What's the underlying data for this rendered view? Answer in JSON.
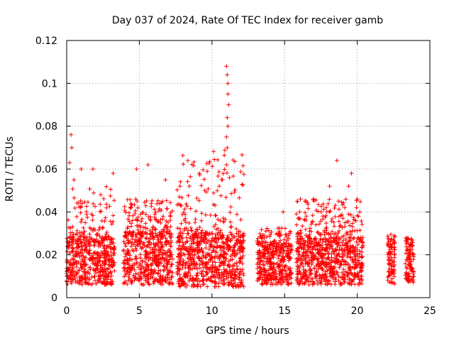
{
  "chart_data": {
    "type": "scatter",
    "title": "Day 037 of 2024, Rate Of TEC Index for receiver gamb",
    "xlabel": "GPS time / hours",
    "ylabel": "ROTI / TECUs",
    "xlim": [
      0,
      25
    ],
    "ylim": [
      0,
      0.12
    ],
    "xticks": [
      0,
      5,
      10,
      15,
      20,
      25
    ],
    "xtick_labels": [
      "0",
      "5",
      "10",
      "15",
      "20",
      "25"
    ],
    "yticks": [
      0,
      0.02,
      0.04,
      0.06,
      0.08,
      0.1,
      0.12
    ],
    "ytick_labels": [
      "0",
      "0.02",
      "0.04",
      "0.06",
      "0.08",
      "0.1",
      "0.12"
    ],
    "grid": true,
    "marker": "+",
    "color": "#ff0000",
    "series": [
      {
        "name": "ROTI",
        "segments": [
          {
            "start": 0.0,
            "end": 3.3,
            "typical": [
              0.006,
              0.028
            ],
            "max": 0.076
          },
          {
            "start": 3.9,
            "end": 7.3,
            "typical": [
              0.006,
              0.03
            ],
            "max": 0.062
          },
          {
            "start": 7.6,
            "end": 12.2,
            "typical": [
              0.005,
              0.03
            ],
            "max": 0.108
          },
          {
            "start": 13.1,
            "end": 15.5,
            "typical": [
              0.006,
              0.025
            ],
            "max": 0.04
          },
          {
            "start": 15.8,
            "end": 20.4,
            "typical": [
              0.006,
              0.028
            ],
            "max": 0.064
          },
          {
            "start": 22.1,
            "end": 22.6,
            "typical": [
              0.006,
              0.025
            ],
            "max": 0.035
          },
          {
            "start": 23.3,
            "end": 23.9,
            "typical": [
              0.007,
              0.025
            ],
            "max": 0.032
          }
        ],
        "highlights": [
          {
            "x": 0.2,
            "y": 0.063
          },
          {
            "x": 0.3,
            "y": 0.076
          },
          {
            "x": 0.35,
            "y": 0.07
          },
          {
            "x": 0.5,
            "y": 0.055
          },
          {
            "x": 1.0,
            "y": 0.06
          },
          {
            "x": 1.8,
            "y": 0.06
          },
          {
            "x": 3.2,
            "y": 0.058
          },
          {
            "x": 4.8,
            "y": 0.06
          },
          {
            "x": 5.6,
            "y": 0.062
          },
          {
            "x": 6.8,
            "y": 0.055
          },
          {
            "x": 7.8,
            "y": 0.052
          },
          {
            "x": 9.5,
            "y": 0.05
          },
          {
            "x": 10.5,
            "y": 0.052
          },
          {
            "x": 11.0,
            "y": 0.108
          },
          {
            "x": 11.05,
            "y": 0.104
          },
          {
            "x": 11.1,
            "y": 0.1
          },
          {
            "x": 11.1,
            "y": 0.095
          },
          {
            "x": 11.15,
            "y": 0.09
          },
          {
            "x": 11.05,
            "y": 0.084
          },
          {
            "x": 11.1,
            "y": 0.08
          },
          {
            "x": 11.0,
            "y": 0.075
          },
          {
            "x": 11.05,
            "y": 0.07
          },
          {
            "x": 11.0,
            "y": 0.062
          },
          {
            "x": 11.2,
            "y": 0.056
          },
          {
            "x": 14.9,
            "y": 0.04
          },
          {
            "x": 16.4,
            "y": 0.045
          },
          {
            "x": 17.0,
            "y": 0.046
          },
          {
            "x": 18.1,
            "y": 0.052
          },
          {
            "x": 18.6,
            "y": 0.064
          },
          {
            "x": 19.6,
            "y": 0.058
          },
          {
            "x": 19.4,
            "y": 0.052
          },
          {
            "x": 20.0,
            "y": 0.046
          }
        ]
      }
    ]
  }
}
